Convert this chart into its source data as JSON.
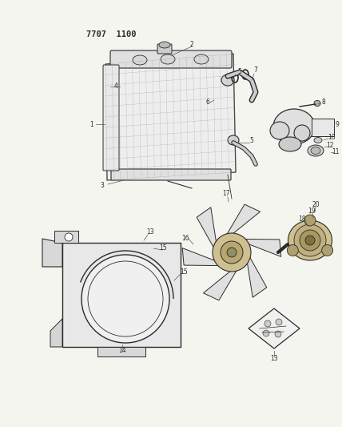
{
  "title": "7707  1100",
  "bg_color": "#f5f5f0",
  "title_fontsize": 7.5,
  "fig_width": 4.28,
  "fig_height": 5.33,
  "dpi": 100
}
